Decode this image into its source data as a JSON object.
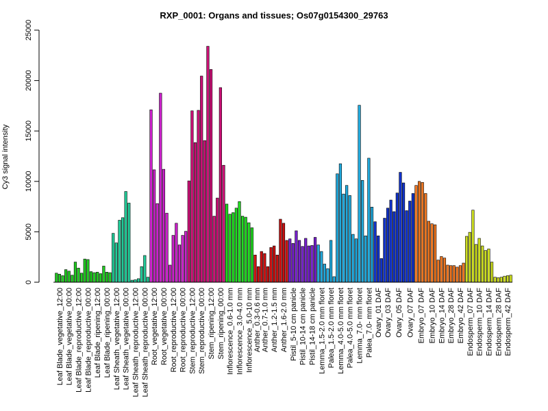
{
  "chart_data": {
    "type": "bar",
    "title": "RXP_0001: Organs and tissues; Os07g0154300_29763",
    "xlabel": "",
    "ylabel": "Cy3 signal intensity",
    "ylim": [
      0,
      25000
    ],
    "yticks": [
      0,
      5000,
      10000,
      15000,
      20000,
      25000
    ],
    "grid": false,
    "legend": "none",
    "groups": [
      {
        "label": "Leaf Blade_vegetative_12:00",
        "color": "#22cc22",
        "values": [
          900,
          800,
          650
        ]
      },
      {
        "label": "Leaf Blade_vegetative_00:00",
        "color": "#22cc22",
        "values": [
          1250,
          1100,
          700
        ]
      },
      {
        "label": "Leaf Blade_reproductive_12:00",
        "color": "#22cc22",
        "values": [
          2000,
          1400,
          900
        ]
      },
      {
        "label": "Leaf Blade_reproductive_00:00",
        "color": "#22cc22",
        "values": [
          2300,
          2250,
          1050
        ]
      },
      {
        "label": "Leaf Blade_ripening_12:00",
        "color": "#22cc22",
        "values": [
          950,
          1000,
          850
        ]
      },
      {
        "label": "Leaf Blade_ripening_00:00",
        "color": "#22cc22",
        "values": [
          1600,
          1000,
          950
        ]
      },
      {
        "label": "Leaf Sheath_vegetative_12:00",
        "color": "#22cc99",
        "values": [
          4850,
          3900,
          6150
        ]
      },
      {
        "label": "Leaf Sheath_vegetative_00:00",
        "color": "#22cc99",
        "values": [
          6400,
          9000,
          7850
        ]
      },
      {
        "label": "Leaf Sheath_reproductive_12:00",
        "color": "#22cc99",
        "values": [
          200,
          250,
          350
        ]
      },
      {
        "label": "Leaf Sheath_reproductive_00:00",
        "color": "#22cc99",
        "values": [
          1550,
          2650,
          500
        ]
      },
      {
        "label": "Root_vegetative_12:00",
        "color": "#cc22cc",
        "values": [
          17100,
          11150,
          7800
        ]
      },
      {
        "label": "Root_vegetative_00:00",
        "color": "#cc22cc",
        "values": [
          18750,
          11200,
          6850
        ]
      },
      {
        "label": "Root_reproductive_12:00",
        "color": "#cc22cc",
        "values": [
          1700,
          4650,
          5850
        ]
      },
      {
        "label": "Root_reproductive_00:00",
        "color": "#cc22cc",
        "values": [
          3700,
          4650,
          5050
        ]
      },
      {
        "label": "Stem_reproductive_12:00",
        "color": "#cc1177",
        "values": [
          10050,
          17000,
          13850
        ]
      },
      {
        "label": "Stem_reproductive_00:00",
        "color": "#cc1177",
        "values": [
          17050,
          20450,
          14050
        ]
      },
      {
        "label": "Stem_ripening_12:00",
        "color": "#cc1177",
        "values": [
          23400,
          21100,
          6550
        ]
      },
      {
        "label": "Stem_ripening_00:00",
        "color": "#cc1177",
        "values": [
          8350,
          19300,
          11600
        ]
      },
      {
        "label": "Inflorescence_0.6-1.0 mm",
        "color": "#22dd22",
        "values": [
          7750,
          6750,
          6900
        ]
      },
      {
        "label": "Inflorescence_3.0-4.0 mm",
        "color": "#22dd22",
        "values": [
          7350,
          8000,
          6550
        ]
      },
      {
        "label": "Inflorescence_5.0-10 mm",
        "color": "#22dd22",
        "values": [
          6450,
          5900,
          5400
        ]
      },
      {
        "label": "Anther_0.3-0.6 mm",
        "color": "#cc1111",
        "values": [
          2700,
          1550
        ]
      },
      {
        "label": "Anther_0.7-1.0 mm",
        "color": "#cc1111",
        "values": [
          3050,
          2850,
          1550
        ]
      },
      {
        "label": "Anther_1.2-1.5 mm",
        "color": "#cc1111",
        "values": [
          3450,
          3600,
          2700
        ]
      },
      {
        "label": "Anther_1.6-2.0 mm",
        "color": "#cc1111",
        "values": [
          6250,
          5850,
          4150
        ]
      },
      {
        "label": "Pistil_5-10 cm panicle",
        "color": "#7722cc",
        "values": [
          4300,
          3850,
          5100
        ]
      },
      {
        "label": "Pistil_10-14 cm panicle",
        "color": "#7722cc",
        "values": [
          4150,
          3550,
          4350
        ]
      },
      {
        "label": "Pistil_14-18 cm panicle",
        "color": "#7722cc",
        "values": [
          3600,
          3650,
          4450
        ]
      },
      {
        "label": "Lemma_1.5-2.0 mm floret",
        "color": "#22aadd",
        "values": [
          3700,
          3050,
          1800
        ]
      },
      {
        "label": "Palea_1.5-2.0 mm floret",
        "color": "#22aadd",
        "values": [
          1350,
          4150,
          550
        ]
      },
      {
        "label": "Lemma_4.0-5.0 mm floret",
        "color": "#22aadd",
        "values": [
          10750,
          11750,
          8750
        ]
      },
      {
        "label": "Palea_4.0-5.0 mm floret",
        "color": "#22aadd",
        "values": [
          9600,
          8600,
          4750
        ]
      },
      {
        "label": "Lemma_7.0- mm floret",
        "color": "#22aadd",
        "values": [
          4300,
          17550,
          10100
        ]
      },
      {
        "label": "Palea_7.0- mm floret",
        "color": "#22aadd",
        "values": [
          4600,
          12300,
          7450
        ]
      },
      {
        "label": "Ovary_01 DAF",
        "color": "#1133cc",
        "values": [
          6000,
          4600,
          2350
        ]
      },
      {
        "label": "Ovary_03 DAF",
        "color": "#1133cc",
        "values": [
          6350,
          7350,
          8150
        ]
      },
      {
        "label": "Ovary_05 DAF",
        "color": "#1133cc",
        "values": [
          7000,
          8850,
          10900,
          9850
        ]
      },
      {
        "label": "Ovary_07 DAF",
        "color": "#1133cc",
        "values": [
          7100,
          8050,
          8800
        ]
      },
      {
        "label": "Embryo_07 DAF",
        "color": "#ee7722",
        "values": [
          9600,
          10000,
          9900,
          8800
        ]
      },
      {
        "label": "Embryo_10 DAF",
        "color": "#ee7722",
        "values": [
          6050,
          5800,
          5700
        ]
      },
      {
        "label": "Embryo_14 DAF",
        "color": "#ee7722",
        "values": [
          2200,
          2550,
          2400
        ]
      },
      {
        "label": "Embryo_28 DAF",
        "color": "#ee7722",
        "values": [
          1700,
          1650,
          1650
        ]
      },
      {
        "label": "Embryo_42 DAF",
        "color": "#ee7722",
        "values": [
          1500,
          1650,
          1900
        ]
      },
      {
        "label": "Endosperm_07 DAF",
        "color": "#ccdd22",
        "values": [
          4550,
          4950,
          7150
        ]
      },
      {
        "label": "Endosperm_10 DAF",
        "color": "#ccdd22",
        "values": [
          3750,
          4350,
          3600
        ]
      },
      {
        "label": "Endosperm_14 DAF",
        "color": "#ccdd22",
        "values": [
          3150,
          3300,
          2000
        ]
      },
      {
        "label": "Endosperm_28 DAF",
        "color": "#ccdd22",
        "values": [
          500,
          450,
          500
        ]
      },
      {
        "label": "Endosperm_42 DAF",
        "color": "#ccdd22",
        "values": [
          600,
          650,
          700
        ]
      }
    ]
  }
}
